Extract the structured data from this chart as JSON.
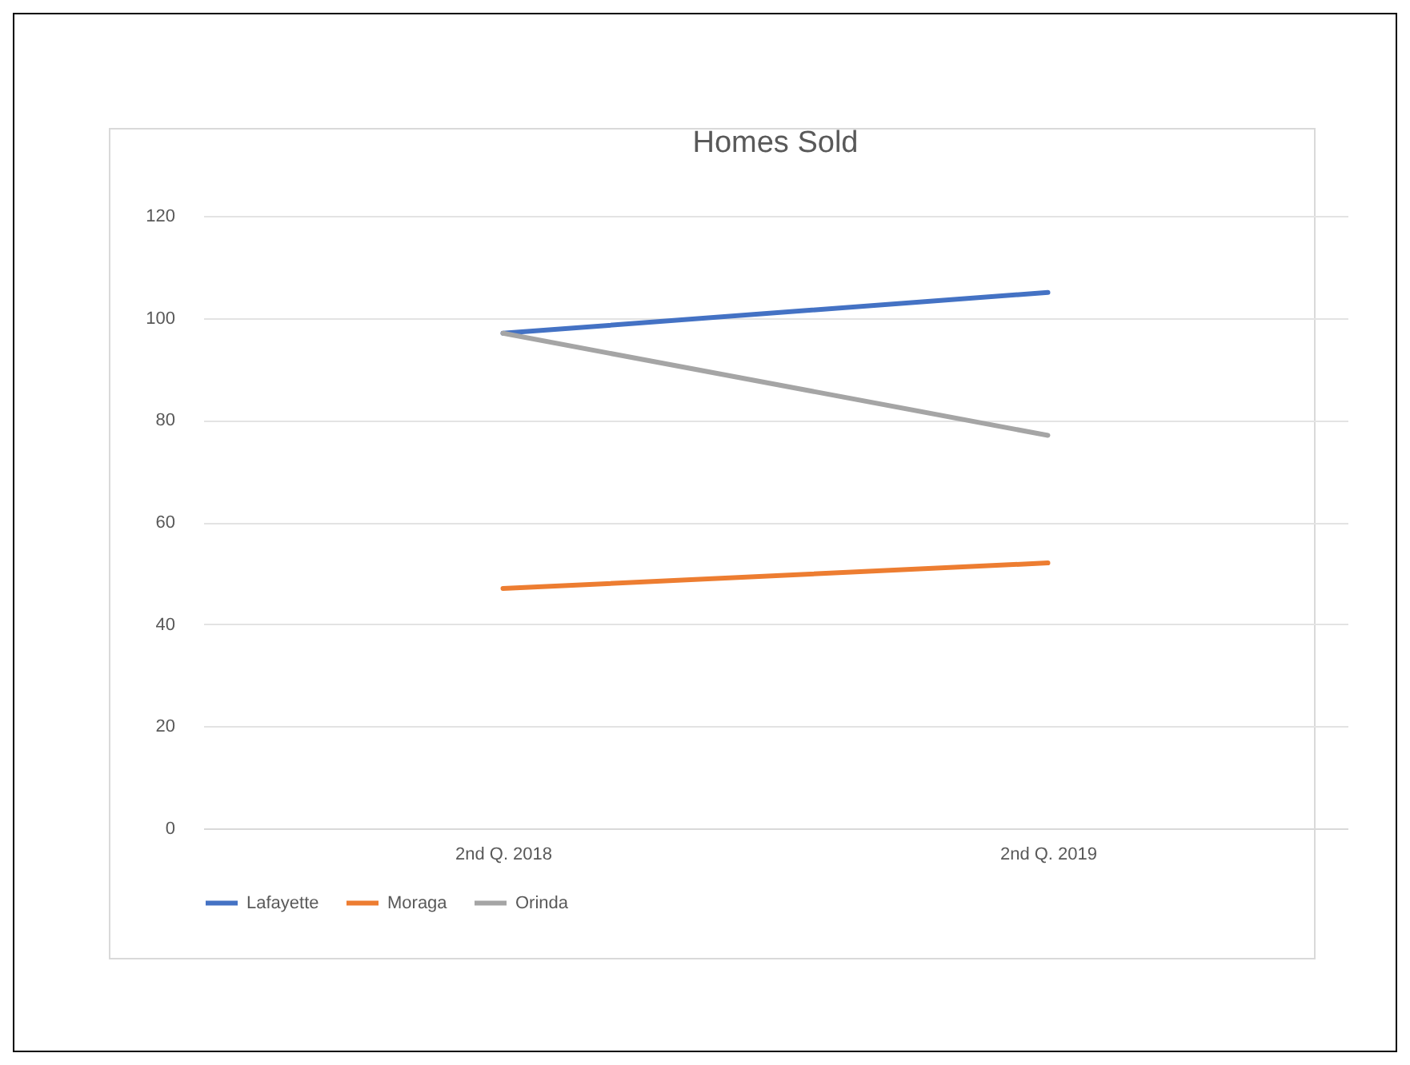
{
  "chart_data": {
    "type": "line",
    "title": "Homes Sold",
    "categories": [
      "2nd Q. 2018",
      "2nd Q. 2019"
    ],
    "series": [
      {
        "name": "Lafayette",
        "color": "#4472c4",
        "values": [
          97,
          105
        ]
      },
      {
        "name": "Moraga",
        "color": "#ed7d31",
        "values": [
          47,
          52
        ]
      },
      {
        "name": "Orinda",
        "color": "#a5a5a5",
        "values": [
          97,
          77
        ]
      }
    ],
    "ylim": [
      0,
      120
    ],
    "yticks": [
      0,
      20,
      40,
      60,
      80,
      100,
      120
    ],
    "grid": "y",
    "legend": "bottom"
  }
}
